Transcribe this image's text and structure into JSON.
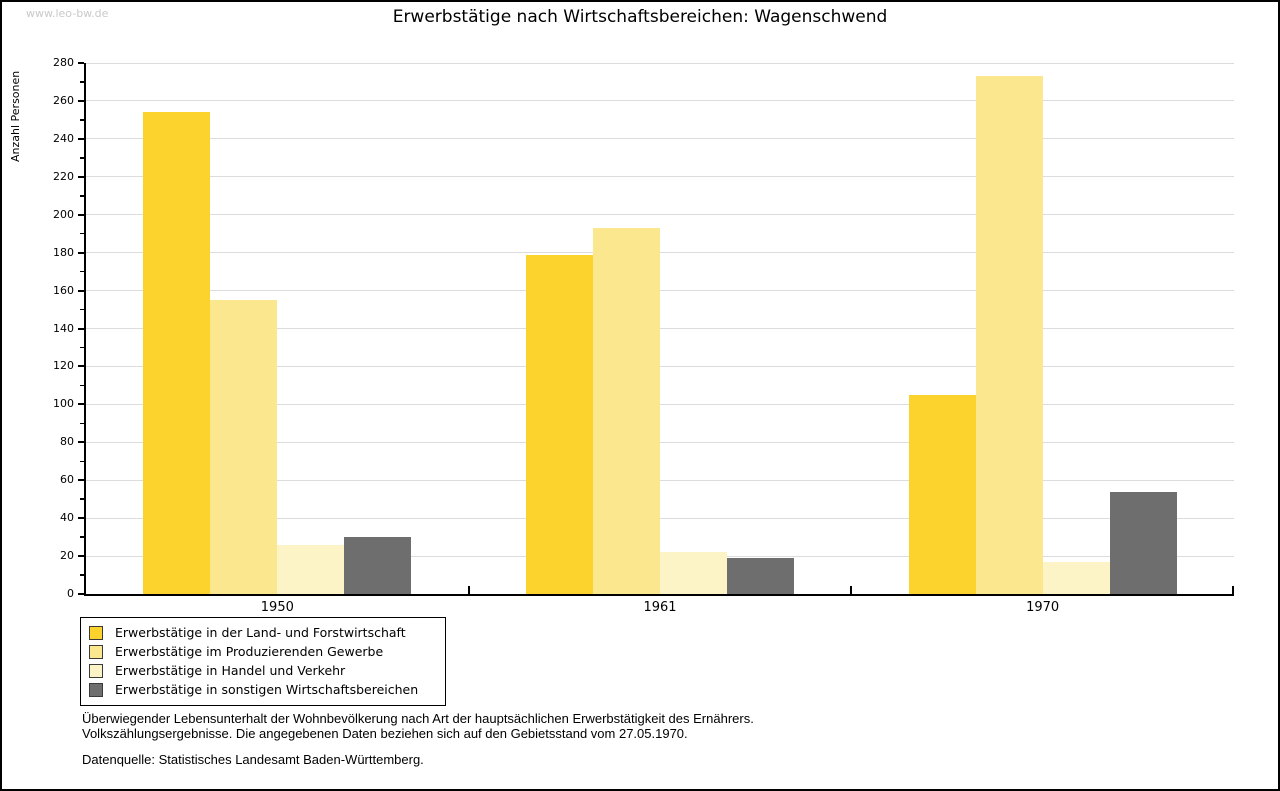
{
  "watermark": "www.leo-bw.de",
  "chart_data": {
    "type": "bar",
    "title": "Erwerbstätige nach Wirtschaftsbereichen: Wagenschwend",
    "ylabel": "Anzahl Personen",
    "xlabel": "",
    "ylim": [
      0,
      280
    ],
    "ytick_step": 20,
    "grid": "horizontal-major",
    "legend_position": "bottom-left-box",
    "categories": [
      "1950",
      "1961",
      "1970"
    ],
    "series": [
      {
        "name": "Erwerbstätige in der Land- und Forstwirtschaft",
        "color": "#FCD32D",
        "values": [
          254,
          179,
          105
        ]
      },
      {
        "name": "Erwerbstätige im Produzierenden Gewerbe",
        "color": "#FBE88E",
        "values": [
          155,
          193,
          273
        ]
      },
      {
        "name": "Erwerbstätige in Handel und Verkehr",
        "color": "#FCF4C7",
        "values": [
          26,
          22,
          17
        ]
      },
      {
        "name": "Erwerbstätige in sonstigen Wirtschaftsbereichen",
        "color": "#6E6E6E",
        "values": [
          30,
          19,
          54
        ]
      }
    ]
  },
  "footnote": {
    "line1": "Überwiegender Lebensunterhalt der Wohnbevölkerung nach Art der hauptsächlichen Erwerbstätigkeit des Ernährers.",
    "line2": "Volkszählungsergebnisse. Die angegebenen Daten beziehen sich auf den Gebietsstand vom 27.05.1970.",
    "source": "Datenquelle: Statistisches Landesamt Baden-Württemberg."
  },
  "colors": {
    "axis": "#000000",
    "gridline": "#dcdcdc",
    "watermark": "#c9c9c9",
    "background": "#ffffff"
  }
}
